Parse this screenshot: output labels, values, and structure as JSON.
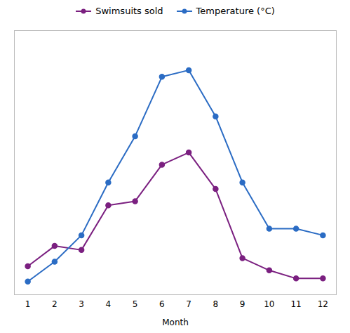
{
  "chart_data": {
    "type": "line",
    "xlabel": "Month",
    "x": [
      1,
      2,
      3,
      4,
      5,
      6,
      7,
      8,
      9,
      10,
      11,
      12
    ],
    "xlim": [
      0.5,
      12.5
    ],
    "xticks": [
      1,
      2,
      3,
      4,
      5,
      6,
      7,
      8,
      9,
      10,
      11,
      12
    ],
    "ylim": [
      0,
      65
    ],
    "yticks": [],
    "y2lim": [
      0,
      40
    ],
    "y2ticks": [],
    "grid": false,
    "legend": "top",
    "tick_labels": "x",
    "marker": "circle",
    "series": [
      {
        "name": "Swimsuits sold",
        "color": "#7b2080",
        "values": [
          7,
          12,
          11,
          22,
          23,
          32,
          35,
          26,
          9,
          6,
          4,
          4
        ]
      },
      {
        "name": "Temperature (°C)",
        "color": "#2b6cc4",
        "values": [
          2,
          5,
          9,
          17,
          24,
          33,
          34,
          27,
          17,
          10,
          10,
          9
        ],
        "axis": "y2"
      }
    ]
  }
}
